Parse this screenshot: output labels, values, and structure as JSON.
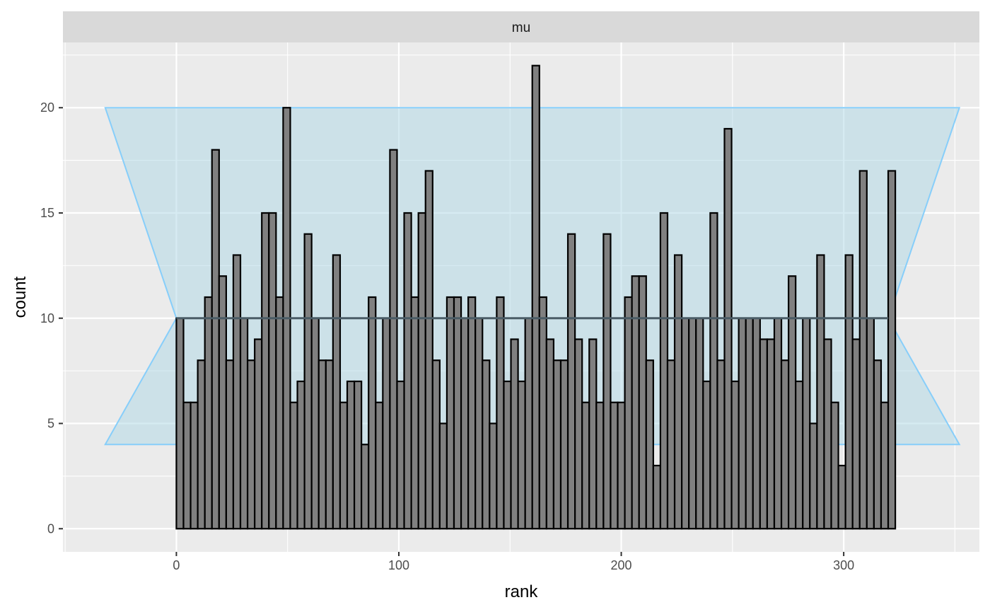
{
  "chart_data": {
    "type": "bar",
    "facet_label": "mu",
    "xlabel": "rank",
    "ylabel": "count",
    "xlim": [
      -51,
      361
    ],
    "ylim": [
      -1.1,
      23.1
    ],
    "x_ticks": [
      0,
      100,
      200,
      300
    ],
    "y_ticks": [
      0,
      5,
      10,
      15,
      20
    ],
    "grid": true,
    "bin_width": 3.2,
    "x_start": 0,
    "values": [
      10,
      6,
      6,
      8,
      11,
      18,
      12,
      8,
      13,
      10,
      8,
      9,
      15,
      15,
      11,
      20,
      6,
      7,
      14,
      10,
      8,
      8,
      13,
      6,
      7,
      7,
      4,
      11,
      6,
      10,
      18,
      7,
      15,
      11,
      15,
      17,
      8,
      5,
      11,
      11,
      10,
      11,
      10,
      8,
      5,
      11,
      7,
      9,
      7,
      10,
      22,
      11,
      9,
      8,
      8,
      14,
      9,
      6,
      9,
      6,
      14,
      6,
      6,
      11,
      12,
      12,
      8,
      3,
      15,
      8,
      13,
      10,
      10,
      10,
      7,
      15,
      8,
      19,
      7,
      10,
      10,
      10,
      9,
      9,
      10,
      8,
      12,
      7,
      10,
      5,
      13,
      9,
      6,
      3,
      13,
      9,
      17,
      10,
      8,
      6,
      17
    ],
    "reference_line": 10,
    "band": {
      "x_left": -32,
      "x_right": 352,
      "x_data_start": 0,
      "x_data_end": 320,
      "top": 20,
      "bottom": 4,
      "center": 10
    },
    "colors": {
      "panel_bg": "#EBEBEB",
      "grid_major": "#FFFFFF",
      "strip_bg": "#D9D9D9",
      "bar_fill": "#808080",
      "bar_stroke": "#000000",
      "band_fill": "#ADD8E6",
      "band_stroke": "#87CEFA",
      "ref_line": "#4A5C66"
    }
  }
}
